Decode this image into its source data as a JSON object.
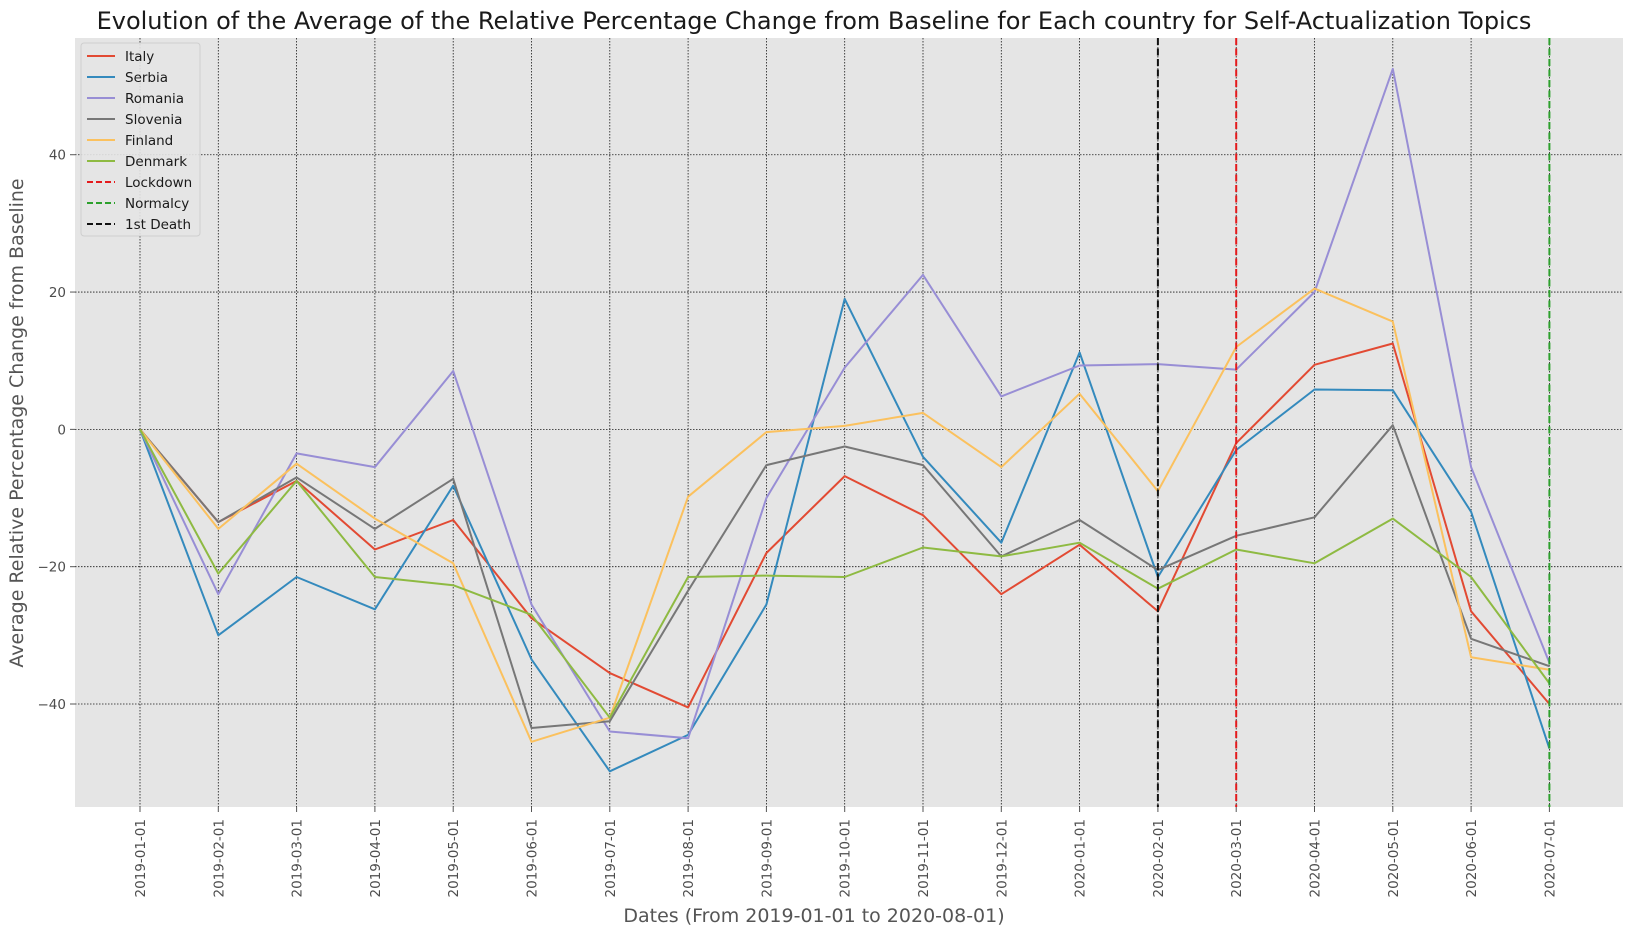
{
  "chart_data": {
    "type": "line",
    "title": "Evolution of the Average of the Relative Percentage Change from Baseline for Each country for Self-Actualization Topics",
    "xlabel": "Dates (From 2019-01-01 to 2020-08-01)",
    "ylabel": "Average Relative Percentage Change from Baseline",
    "x": [
      "2019-01-01",
      "2019-02-01",
      "2019-03-01",
      "2019-04-01",
      "2019-05-01",
      "2019-06-01",
      "2019-07-01",
      "2019-08-01",
      "2019-09-01",
      "2019-10-01",
      "2019-11-01",
      "2019-12-01",
      "2020-01-01",
      "2020-02-01",
      "2020-03-01",
      "2020-04-01",
      "2020-05-01",
      "2020-06-01",
      "2020-07-01"
    ],
    "ylim": [
      -55,
      57
    ],
    "yticks": [
      -40,
      -20,
      0,
      20,
      40
    ],
    "ytick_labels": [
      "−40",
      "−20",
      "0",
      "20",
      "40"
    ],
    "grid": true,
    "legend_position": "top-left",
    "series": [
      {
        "name": "Italy",
        "color": "#e24a33",
        "values": [
          0,
          -13.5,
          -7.5,
          -17.5,
          -13.2,
          -27.5,
          -35.5,
          -40.5,
          -18,
          -6.8,
          -12.5,
          -24,
          -16.8,
          -26.5,
          -2,
          9.4,
          12.5,
          -26.5,
          -40
        ]
      },
      {
        "name": "Serbia",
        "color": "#348abd",
        "values": [
          0,
          -30,
          -21.5,
          -26.2,
          -8.2,
          -33.5,
          -49.8,
          -44.5,
          -25.5,
          19,
          -4,
          -16.5,
          11.2,
          -21.5,
          -3,
          5.8,
          5.7,
          -12,
          -46.5
        ]
      },
      {
        "name": "Romania",
        "color": "#988ed5",
        "values": [
          0,
          -24,
          -3.5,
          -5.5,
          8.5,
          -25.5,
          -44,
          -45,
          -10,
          9,
          22.5,
          4.8,
          9.3,
          9.5,
          8.7,
          20,
          52.5,
          -5.5,
          -34
        ]
      },
      {
        "name": "Slovenia",
        "color": "#777777",
        "values": [
          0,
          -13.5,
          -7,
          -14.5,
          -7.2,
          -43.5,
          -42.5,
          -23.5,
          -5.2,
          -2.5,
          -5.2,
          -18.5,
          -13.2,
          -20.5,
          -15.5,
          -12.8,
          0.6,
          -30.5,
          -34.5
        ]
      },
      {
        "name": "Finland",
        "color": "#fbc15e",
        "values": [
          0,
          -14.5,
          -5,
          -13,
          -19.5,
          -45.5,
          -42,
          -9.8,
          -0.4,
          0.5,
          2.4,
          -5.5,
          5.2,
          -9,
          12,
          20.5,
          15.7,
          -33.2,
          -35
        ]
      },
      {
        "name": "Denmark",
        "color": "#8eba42",
        "values": [
          0,
          -21,
          -7.5,
          -21.5,
          -22.7,
          -27,
          -42,
          -21.5,
          -21.3,
          -21.5,
          -17.2,
          -18.5,
          -16.5,
          -23.2,
          -17.5,
          -19.5,
          -13,
          -21.5,
          -37
        ]
      }
    ],
    "vlines": [
      {
        "name": "Lockdown",
        "color": "#e41a1c",
        "x": "2020-03-01"
      },
      {
        "name": "Normalcy",
        "color": "#2ca02c",
        "x": "2020-07-01"
      },
      {
        "name": "1st Death",
        "color": "#111111",
        "x": "2020-02-01"
      }
    ]
  }
}
